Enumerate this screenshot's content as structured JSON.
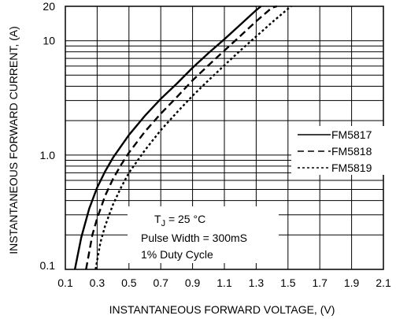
{
  "chart_data": {
    "type": "line",
    "x_scale": "linear",
    "y_scale": "log",
    "xlim": [
      0.1,
      2.1
    ],
    "ylim": [
      0.1,
      20
    ],
    "grid": true,
    "xlabel": "INSTANTANEOUS FORWARD VOLTAGE, (V)",
    "ylabel": "INSTANTANEOUS FORWARD CURRENT, (A)",
    "x_ticks": [
      "0.1",
      "0.3",
      "0.5",
      "0.7",
      "0.9",
      "1.1",
      "1.3",
      "1.5",
      "1.7",
      "1.9",
      "2.1"
    ],
    "y_ticks": [
      "0.1",
      "1.0",
      "10",
      "20"
    ],
    "legend_position": "right",
    "series": [
      {
        "name": "FM5817",
        "style": "solid",
        "x": [
          0.16,
          0.2,
          0.25,
          0.3,
          0.35,
          0.4,
          0.5,
          0.6,
          0.7,
          0.8,
          0.9,
          1.0,
          1.1,
          1.2,
          1.3,
          1.33
        ],
        "y": [
          0.1,
          0.19,
          0.34,
          0.52,
          0.72,
          0.95,
          1.5,
          2.2,
          3.1,
          4.2,
          5.8,
          7.8,
          10.3,
          13.8,
          18.5,
          20
        ]
      },
      {
        "name": "FM5818",
        "style": "dashed",
        "x": [
          0.23,
          0.27,
          0.3,
          0.35,
          0.4,
          0.45,
          0.5,
          0.6,
          0.7,
          0.8,
          0.9,
          1.0,
          1.1,
          1.2,
          1.3,
          1.4,
          1.43
        ],
        "y": [
          0.1,
          0.2,
          0.28,
          0.44,
          0.62,
          0.82,
          1.05,
          1.6,
          2.3,
          3.2,
          4.5,
          6.1,
          8.2,
          11.0,
          14.8,
          19.5,
          20
        ]
      },
      {
        "name": "FM5819",
        "style": "dotted",
        "x": [
          0.29,
          0.32,
          0.35,
          0.4,
          0.45,
          0.5,
          0.6,
          0.7,
          0.8,
          0.9,
          1.0,
          1.1,
          1.2,
          1.3,
          1.4,
          1.5,
          1.52
        ],
        "y": [
          0.1,
          0.17,
          0.24,
          0.37,
          0.52,
          0.7,
          1.1,
          1.65,
          2.35,
          3.3,
          4.5,
          6.1,
          8.2,
          10.9,
          14.5,
          19.0,
          20
        ]
      }
    ],
    "annotation": {
      "line1_main": "T",
      "line1_sub": "J",
      "line1_rest": " = 25 °C",
      "line2": "Pulse Width = 300mS",
      "line3": "1% Duty Cycle"
    }
  }
}
